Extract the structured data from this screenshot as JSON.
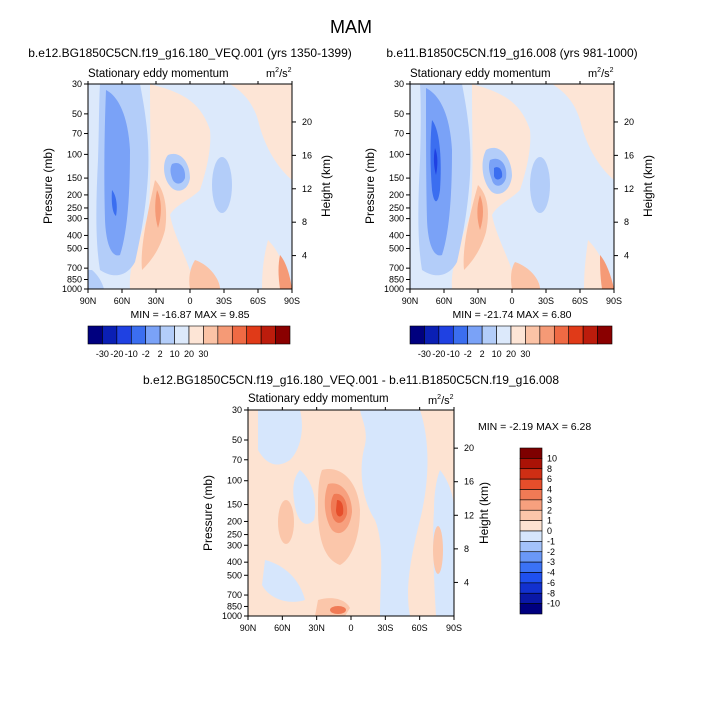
{
  "title": "MAM",
  "unit": {
    "base": "m",
    "exp": "2",
    "den": "s",
    "den_exp": "2"
  },
  "chart_data": [
    {
      "type": "contour",
      "id": "top-left",
      "title": "b.e12.BG1850C5CN.f19_g16.180_VEQ.001 (yrs 1350-1399)",
      "subtitle": "Stationary eddy momentum",
      "ylabel": "Pressure (mb)",
      "ylabel_right": "Height (km)",
      "x_ticks": [
        "90N",
        "60N",
        "30N",
        "0",
        "30S",
        "60S",
        "90S"
      ],
      "p_ticks": [
        "30",
        "50",
        "70",
        "100",
        "150",
        "200",
        "250",
        "300",
        "400",
        "500",
        "700",
        "850",
        "1000"
      ],
      "h_ticks": [
        "4",
        "8",
        "12",
        "16",
        "20"
      ],
      "stats": "MIN = -16.87  MAX =   9.85",
      "min": -16.87,
      "max": 9.85,
      "levels": [
        -30,
        -20,
        -10,
        -2,
        2,
        10,
        20,
        30
      ],
      "features": [
        {
          "name": "polar-jet-negative",
          "lat": 66,
          "p": 250,
          "value": -16.87
        },
        {
          "name": "subtropical-negative",
          "lat": 15,
          "p": 150,
          "value": -8
        },
        {
          "name": "subtropical-positive",
          "lat": 30,
          "p": 200,
          "value": 9.85
        },
        {
          "name": "southern-negative",
          "lat": -30,
          "p": 170,
          "value": -4
        }
      ]
    },
    {
      "type": "contour",
      "id": "top-right",
      "title": "b.e11.B1850C5CN.f19_g16.008 (yrs 981-1000)",
      "subtitle": "Stationary eddy momentum",
      "ylabel": "Pressure (mb)",
      "ylabel_right": "Height (km)",
      "x_ticks": [
        "90N",
        "60N",
        "30N",
        "0",
        "30S",
        "60S",
        "90S"
      ],
      "p_ticks": [
        "30",
        "50",
        "70",
        "100",
        "150",
        "200",
        "250",
        "300",
        "400",
        "500",
        "700",
        "850",
        "1000"
      ],
      "h_ticks": [
        "4",
        "8",
        "12",
        "16",
        "20"
      ],
      "stats": "MIN = -21.74  MAX =   6.80",
      "min": -21.74,
      "max": 6.8,
      "levels": [
        -30,
        -20,
        -10,
        -2,
        2,
        10,
        20,
        30
      ],
      "features": [
        {
          "name": "polar-jet-negative",
          "lat": 66,
          "p": 200,
          "value": -21.74
        },
        {
          "name": "subtropical-negative",
          "lat": 12,
          "p": 150,
          "value": -12
        },
        {
          "name": "subtropical-positive",
          "lat": 30,
          "p": 220,
          "value": 6.8
        },
        {
          "name": "southern-negative",
          "lat": -30,
          "p": 170,
          "value": -4
        }
      ]
    },
    {
      "type": "contour",
      "id": "difference",
      "title": "b.e12.BG1850C5CN.f19_g16.180_VEQ.001 - b.e11.B1850C5CN.f19_g16.008",
      "subtitle": "Stationary eddy momentum",
      "ylabel": "Pressure (mb)",
      "ylabel_right": "Height (km)",
      "x_ticks": [
        "90N",
        "60N",
        "30N",
        "0",
        "30S",
        "60S",
        "90S"
      ],
      "p_ticks": [
        "30",
        "50",
        "70",
        "100",
        "150",
        "200",
        "250",
        "300",
        "400",
        "500",
        "700",
        "850",
        "1000"
      ],
      "h_ticks": [
        "4",
        "8",
        "12",
        "16",
        "20"
      ],
      "stats": "MIN =  -2.19  MAX =   6.28",
      "min": -2.19,
      "max": 6.28,
      "levels": [
        -10,
        -8,
        -6,
        -4,
        -3,
        -2,
        -1,
        0,
        1,
        2,
        3,
        4,
        6,
        8,
        10
      ],
      "features": [
        {
          "name": "subtropical-positive",
          "lat": 10,
          "p": 150,
          "value": 6.28
        },
        {
          "name": "northern-negative",
          "lat": 70,
          "p": 100,
          "value": -1.5
        },
        {
          "name": "southern-negative",
          "lat": -25,
          "p": 300,
          "value": -1.2
        },
        {
          "name": "surface-positive",
          "lat": 20,
          "p": 950,
          "value": 2
        }
      ]
    }
  ],
  "colors": {
    "neg": [
      "#00007f",
      "#0a1fb4",
      "#1f41e2",
      "#3b6ef0",
      "#7aa2f7",
      "#b3cdf9",
      "#dce9fb"
    ],
    "zero": "#ffffff",
    "pos": [
      "#fde5d6",
      "#fbc3a6",
      "#f59a76",
      "#ef6a44",
      "#e03a18",
      "#bc1c0c",
      "#8a0000"
    ],
    "div_neg": [
      "#00007f",
      "#0a18a6",
      "#1231cf",
      "#1f50ef",
      "#3b72f5",
      "#6a98f7",
      "#a3c2fa",
      "#d6e6fc"
    ],
    "div_pos": [
      "#fde3d2",
      "#fbc6aa",
      "#f7a07e",
      "#f07a55",
      "#e64e2b",
      "#cf2e14",
      "#aa1206",
      "#7e0000"
    ]
  }
}
